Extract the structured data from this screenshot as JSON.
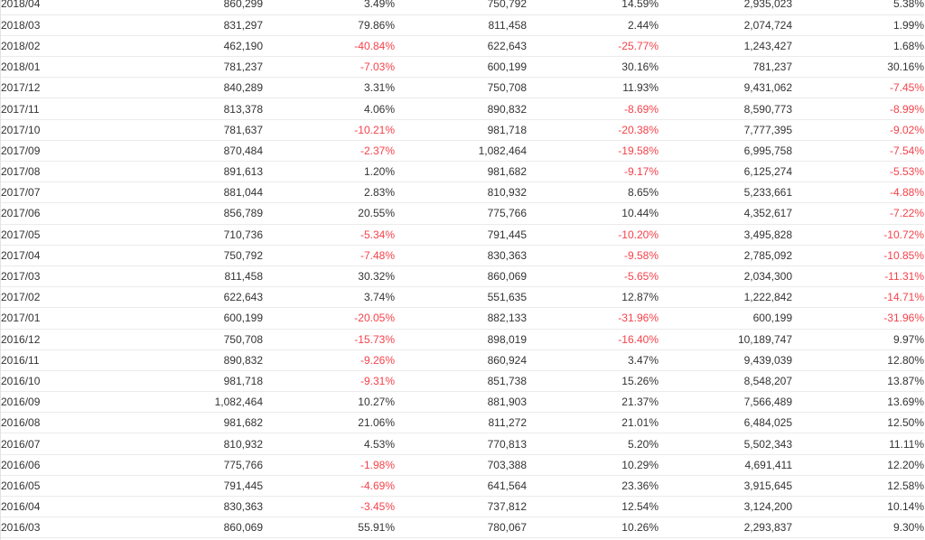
{
  "colors": {
    "text": "#333333",
    "negative": "#f5424a",
    "border": "#ebebeb"
  },
  "rows": [
    [
      "2018/04",
      "860,299",
      "3.49%",
      "750,792",
      "14.59%",
      "2,935,023",
      "5.38%"
    ],
    [
      "2018/03",
      "831,297",
      "79.86%",
      "811,458",
      "2.44%",
      "2,074,724",
      "1.99%"
    ],
    [
      "2018/02",
      "462,190",
      "-40.84%",
      "622,643",
      "-25.77%",
      "1,243,427",
      "1.68%"
    ],
    [
      "2018/01",
      "781,237",
      "-7.03%",
      "600,199",
      "30.16%",
      "781,237",
      "30.16%"
    ],
    [
      "2017/12",
      "840,289",
      "3.31%",
      "750,708",
      "11.93%",
      "9,431,062",
      "-7.45%"
    ],
    [
      "2017/11",
      "813,378",
      "4.06%",
      "890,832",
      "-8.69%",
      "8,590,773",
      "-8.99%"
    ],
    [
      "2017/10",
      "781,637",
      "-10.21%",
      "981,718",
      "-20.38%",
      "7,777,395",
      "-9.02%"
    ],
    [
      "2017/09",
      "870,484",
      "-2.37%",
      "1,082,464",
      "-19.58%",
      "6,995,758",
      "-7.54%"
    ],
    [
      "2017/08",
      "891,613",
      "1.20%",
      "981,682",
      "-9.17%",
      "6,125,274",
      "-5.53%"
    ],
    [
      "2017/07",
      "881,044",
      "2.83%",
      "810,932",
      "8.65%",
      "5,233,661",
      "-4.88%"
    ],
    [
      "2017/06",
      "856,789",
      "20.55%",
      "775,766",
      "10.44%",
      "4,352,617",
      "-7.22%"
    ],
    [
      "2017/05",
      "710,736",
      "-5.34%",
      "791,445",
      "-10.20%",
      "3,495,828",
      "-10.72%"
    ],
    [
      "2017/04",
      "750,792",
      "-7.48%",
      "830,363",
      "-9.58%",
      "2,785,092",
      "-10.85%"
    ],
    [
      "2017/03",
      "811,458",
      "30.32%",
      "860,069",
      "-5.65%",
      "2,034,300",
      "-11.31%"
    ],
    [
      "2017/02",
      "622,643",
      "3.74%",
      "551,635",
      "12.87%",
      "1,222,842",
      "-14.71%"
    ],
    [
      "2017/01",
      "600,199",
      "-20.05%",
      "882,133",
      "-31.96%",
      "600,199",
      "-31.96%"
    ],
    [
      "2016/12",
      "750,708",
      "-15.73%",
      "898,019",
      "-16.40%",
      "10,189,747",
      "9.97%"
    ],
    [
      "2016/11",
      "890,832",
      "-9.26%",
      "860,924",
      "3.47%",
      "9,439,039",
      "12.80%"
    ],
    [
      "2016/10",
      "981,718",
      "-9.31%",
      "851,738",
      "15.26%",
      "8,548,207",
      "13.87%"
    ],
    [
      "2016/09",
      "1,082,464",
      "10.27%",
      "881,903",
      "21.37%",
      "7,566,489",
      "13.69%"
    ],
    [
      "2016/08",
      "981,682",
      "21.06%",
      "811,272",
      "21.01%",
      "6,484,025",
      "12.50%"
    ],
    [
      "2016/07",
      "810,932",
      "4.53%",
      "770,813",
      "5.20%",
      "5,502,343",
      "11.11%"
    ],
    [
      "2016/06",
      "775,766",
      "-1.98%",
      "703,388",
      "10.29%",
      "4,691,411",
      "12.20%"
    ],
    [
      "2016/05",
      "791,445",
      "-4.69%",
      "641,564",
      "23.36%",
      "3,915,645",
      "12.58%"
    ],
    [
      "2016/04",
      "830,363",
      "-3.45%",
      "737,812",
      "12.54%",
      "3,124,200",
      "10.14%"
    ],
    [
      "2016/03",
      "860,069",
      "55.91%",
      "780,067",
      "10.26%",
      "2,293,837",
      "9.30%"
    ]
  ]
}
